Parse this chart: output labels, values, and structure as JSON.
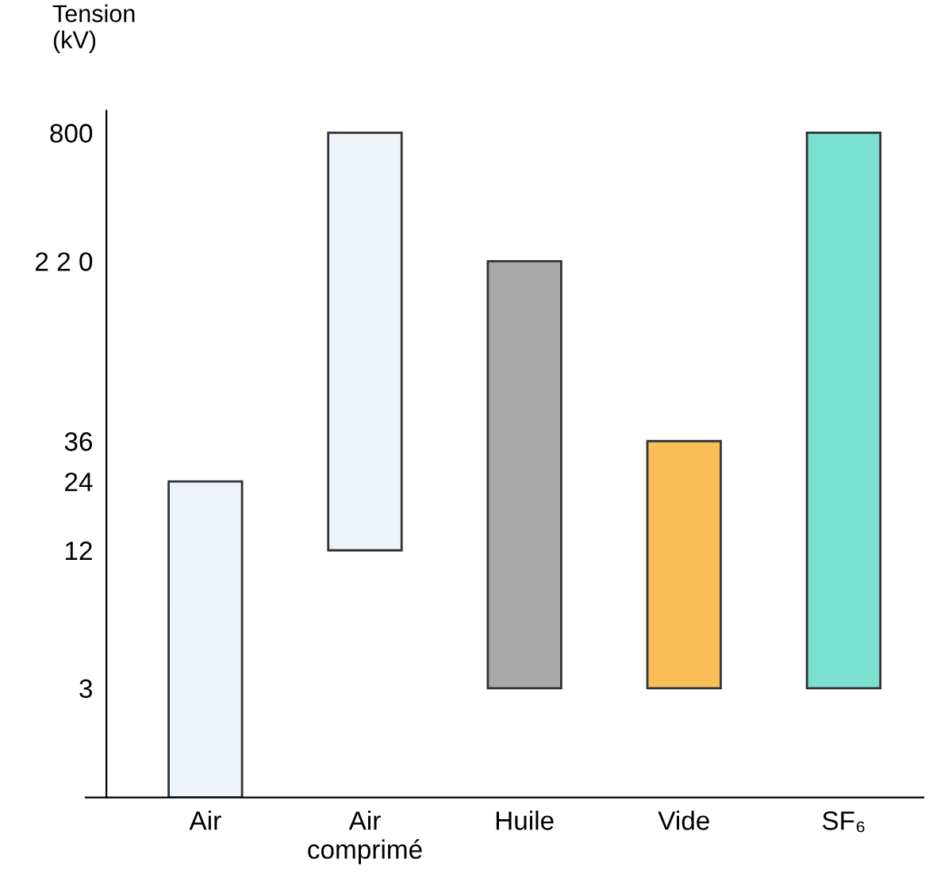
{
  "chart_data": {
    "type": "bar",
    "ylabel": "Tension\n(kV)",
    "categories": [
      "Air",
      "Air\ncomprimé",
      "Huile",
      "Vide",
      "SF₆"
    ],
    "base": [
      1,
      12,
      3,
      3,
      3
    ],
    "values": [
      23,
      788,
      217,
      33,
      797
    ],
    "colors": [
      "#eef3fa",
      "#eef3fa",
      "#a9a9a9",
      "#fbbf5a",
      "#7ae0d0"
    ],
    "ylim": [
      1,
      1000
    ],
    "log": "y",
    "yticks": [
      3,
      12,
      24,
      36,
      {
        "value": 220,
        "label": "2 2 0"
      },
      800
    ],
    "grid": false,
    "legend": false
  }
}
